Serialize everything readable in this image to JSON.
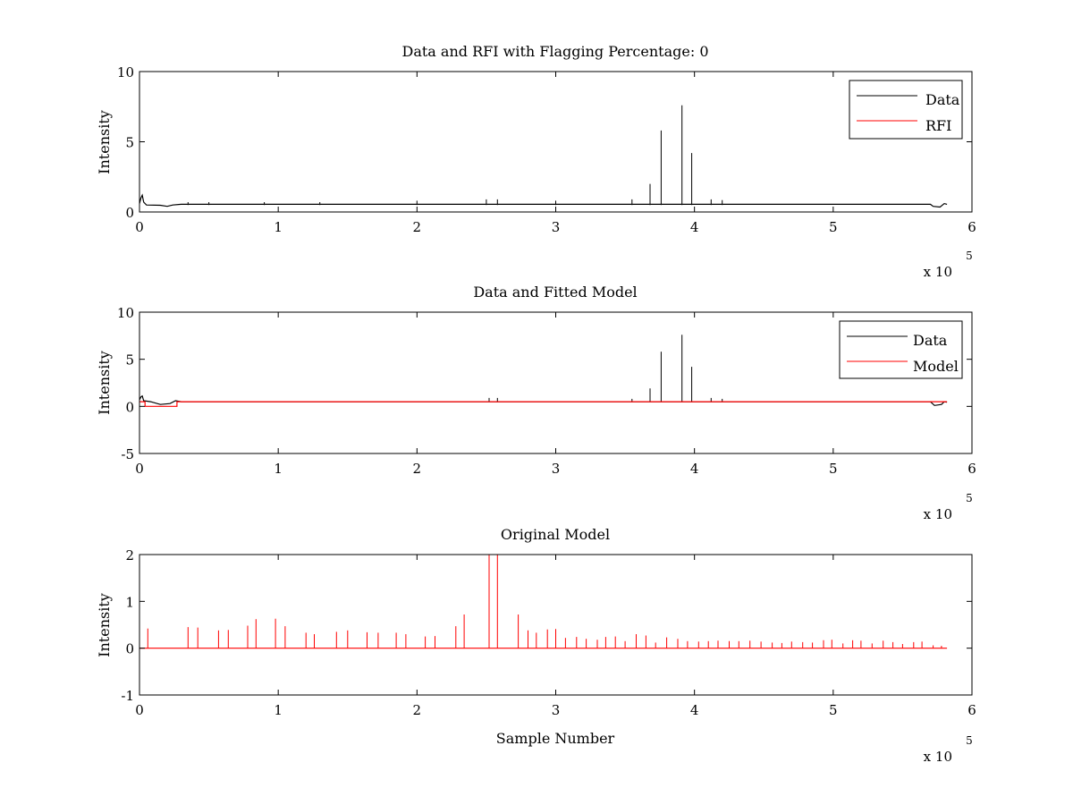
{
  "figure": {
    "background": "#ffffff",
    "axes_color": "#000000",
    "data_color": "#000000",
    "rfi_color": "#ff0000"
  },
  "chart_data": [
    {
      "type": "line",
      "title": "Data and RFI with Flagging Percentage: 0",
      "xlabel": "",
      "ylabel": "Intensity",
      "xlim": [
        0,
        6
      ],
      "ylim": [
        0,
        10
      ],
      "xticks": [
        "0",
        "1",
        "2",
        "3",
        "4",
        "5",
        "6"
      ],
      "yticks": [
        "0",
        "5",
        "10"
      ],
      "x_exponent_prefix": "x 10",
      "x_exponent_power": "5",
      "legend": {
        "position": "top-right",
        "entries": [
          "Data",
          "RFI"
        ]
      },
      "series": [
        {
          "name": "Data",
          "color": "#000000",
          "baseline": [
            [
              0,
              0.6
            ],
            [
              0.01,
              1.0
            ],
            [
              0.02,
              1.2
            ],
            [
              0.03,
              0.7
            ],
            [
              0.05,
              0.5
            ],
            [
              0.15,
              0.48
            ],
            [
              0.2,
              0.4
            ],
            [
              0.24,
              0.5
            ],
            [
              0.3,
              0.55
            ],
            [
              5.7,
              0.55
            ],
            [
              5.72,
              0.4
            ],
            [
              5.77,
              0.35
            ],
            [
              5.8,
              0.6
            ],
            [
              5.82,
              0.55
            ]
          ],
          "spikes": [
            [
              0.35,
              0.7
            ],
            [
              0.5,
              0.7
            ],
            [
              0.9,
              0.7
            ],
            [
              1.3,
              0.7
            ],
            [
              2.0,
              0.8
            ],
            [
              2.5,
              0.9
            ],
            [
              2.58,
              0.9
            ],
            [
              3.0,
              0.8
            ],
            [
              3.55,
              0.9
            ],
            [
              3.68,
              2.0
            ],
            [
              3.76,
              5.8
            ],
            [
              3.91,
              7.6
            ],
            [
              3.98,
              4.2
            ],
            [
              4.12,
              0.9
            ],
            [
              4.2,
              0.85
            ]
          ]
        },
        {
          "name": "RFI",
          "color": "#ff0000",
          "baseline": [],
          "spikes": []
        }
      ]
    },
    {
      "type": "line",
      "title": "Data and Fitted Model",
      "xlabel": "",
      "ylabel": "Intensity",
      "xlim": [
        0,
        6
      ],
      "ylim": [
        -5,
        10
      ],
      "xticks": [
        "0",
        "1",
        "2",
        "3",
        "4",
        "5",
        "6"
      ],
      "yticks": [
        "-5",
        "0",
        "5",
        "10"
      ],
      "x_exponent_prefix": "x 10",
      "x_exponent_power": "5",
      "legend": {
        "position": "top-right",
        "entries": [
          "Data",
          "Model"
        ]
      },
      "series": [
        {
          "name": "Data",
          "color": "#000000",
          "baseline": [
            [
              0,
              0.7
            ],
            [
              0.01,
              1.0
            ],
            [
              0.02,
              1.1
            ],
            [
              0.03,
              0.6
            ],
            [
              0.08,
              0.5
            ],
            [
              0.15,
              0.2
            ],
            [
              0.22,
              0.3
            ],
            [
              0.26,
              0.6
            ],
            [
              0.3,
              0.5
            ],
            [
              5.7,
              0.5
            ],
            [
              5.73,
              0.1
            ],
            [
              5.78,
              0.2
            ],
            [
              5.8,
              0.5
            ],
            [
              5.82,
              0.45
            ]
          ],
          "spikes": [
            [
              2.52,
              0.9
            ],
            [
              2.58,
              0.9
            ],
            [
              3.55,
              0.8
            ],
            [
              3.68,
              1.9
            ],
            [
              3.76,
              5.8
            ],
            [
              3.91,
              7.6
            ],
            [
              3.98,
              4.2
            ],
            [
              4.12,
              0.9
            ],
            [
              4.2,
              0.8
            ]
          ]
        },
        {
          "name": "Model",
          "color": "#ff0000",
          "baseline": [
            [
              0,
              0.5
            ],
            [
              0.04,
              0.5
            ],
            [
              0.04,
              0.0
            ],
            [
              0.27,
              0.0
            ],
            [
              0.27,
              0.5
            ],
            [
              5.82,
              0.5
            ]
          ],
          "spikes": []
        }
      ]
    },
    {
      "type": "line",
      "title": "Original Model",
      "xlabel": "Sample Number",
      "ylabel": "Intensity",
      "xlim": [
        0,
        6
      ],
      "ylim": [
        -1,
        2
      ],
      "xticks": [
        "0",
        "1",
        "2",
        "3",
        "4",
        "5",
        "6"
      ],
      "yticks": [
        "-1",
        "0",
        "1",
        "2"
      ],
      "x_exponent_prefix": "x 10",
      "x_exponent_power": "5",
      "series": [
        {
          "color": "#ff0000",
          "baseline": [
            [
              0,
              0.0
            ],
            [
              5.82,
              0.0
            ]
          ],
          "spikes": [
            [
              0.06,
              0.42
            ],
            [
              0.35,
              0.45
            ],
            [
              0.42,
              0.44
            ],
            [
              0.57,
              0.38
            ],
            [
              0.64,
              0.39
            ],
            [
              0.78,
              0.48
            ],
            [
              0.84,
              0.62
            ],
            [
              0.98,
              0.63
            ],
            [
              1.05,
              0.47
            ],
            [
              1.2,
              0.33
            ],
            [
              1.26,
              0.3
            ],
            [
              1.42,
              0.35
            ],
            [
              1.5,
              0.38
            ],
            [
              1.64,
              0.34
            ],
            [
              1.72,
              0.33
            ],
            [
              1.85,
              0.33
            ],
            [
              1.92,
              0.3
            ],
            [
              2.06,
              0.25
            ],
            [
              2.13,
              0.26
            ],
            [
              2.28,
              0.47
            ],
            [
              2.34,
              0.72
            ],
            [
              2.52,
              2.0
            ],
            [
              2.58,
              2.0
            ],
            [
              2.73,
              0.72
            ],
            [
              2.8,
              0.38
            ],
            [
              2.86,
              0.33
            ],
            [
              2.94,
              0.4
            ],
            [
              3.0,
              0.41
            ],
            [
              3.07,
              0.22
            ],
            [
              3.15,
              0.24
            ],
            [
              3.22,
              0.2
            ],
            [
              3.3,
              0.18
            ],
            [
              3.36,
              0.24
            ],
            [
              3.43,
              0.25
            ],
            [
              3.5,
              0.15
            ],
            [
              3.58,
              0.3
            ],
            [
              3.65,
              0.27
            ],
            [
              3.72,
              0.12
            ],
            [
              3.8,
              0.23
            ],
            [
              3.88,
              0.2
            ],
            [
              3.95,
              0.15
            ],
            [
              4.03,
              0.14
            ],
            [
              4.1,
              0.15
            ],
            [
              4.17,
              0.16
            ],
            [
              4.25,
              0.15
            ],
            [
              4.32,
              0.15
            ],
            [
              4.4,
              0.16
            ],
            [
              4.48,
              0.14
            ],
            [
              4.56,
              0.12
            ],
            [
              4.63,
              0.11
            ],
            [
              4.7,
              0.14
            ],
            [
              4.78,
              0.13
            ],
            [
              4.85,
              0.12
            ],
            [
              4.93,
              0.17
            ],
            [
              4.99,
              0.18
            ],
            [
              5.07,
              0.1
            ],
            [
              5.14,
              0.17
            ],
            [
              5.2,
              0.16
            ],
            [
              5.28,
              0.1
            ],
            [
              5.36,
              0.16
            ],
            [
              5.43,
              0.13
            ],
            [
              5.5,
              0.09
            ],
            [
              5.58,
              0.13
            ],
            [
              5.64,
              0.14
            ],
            [
              5.72,
              0.06
            ],
            [
              5.78,
              0.05
            ]
          ]
        }
      ]
    }
  ]
}
